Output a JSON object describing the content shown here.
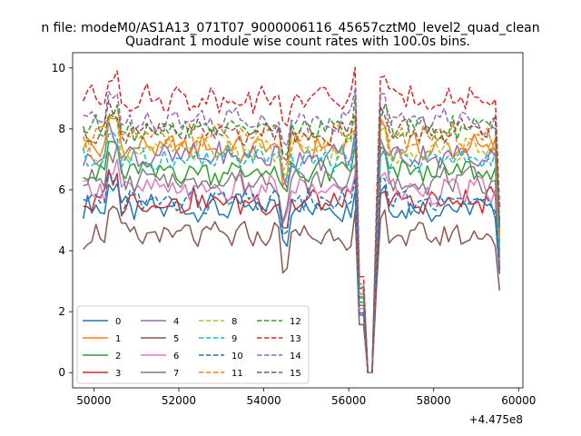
{
  "chart_data": {
    "type": "line",
    "suptitle": "n file: modeM0/AS1A13_071T07_9000006116_45657cztM0_level2_quad_clean",
    "title": "Quadrant 1 module wise count rates with 100.0s bins.",
    "xlabel": "",
    "ylabel": "",
    "x_offset_label": "+4.475e8",
    "xlim": [
      49500,
      60100
    ],
    "ylim": [
      -0.5,
      10.5
    ],
    "xticks": [
      50000,
      52000,
      54000,
      56000,
      58000,
      60000
    ],
    "xtick_labels": [
      "50000",
      "52000",
      "54000",
      "56000",
      "58000",
      "60000"
    ],
    "yticks": [
      0,
      2,
      4,
      6,
      8,
      10
    ],
    "ytick_labels": [
      "0",
      "2",
      "4",
      "6",
      "8",
      "10"
    ],
    "x_range_data": [
      49750,
      59600
    ],
    "bin_seconds": 100.0,
    "gap": {
      "drop_start": 56250,
      "zero_start": 56450,
      "zero_end": 56600,
      "recover": 56700
    },
    "legend": {
      "location": "lower left",
      "columns": 4
    },
    "series": [
      {
        "name": "0",
        "color": "#1f77b4",
        "dash": "solid",
        "level": 5.4
      },
      {
        "name": "1",
        "color": "#ff7f0e",
        "dash": "solid",
        "level": 7.4
      },
      {
        "name": "2",
        "color": "#2ca02c",
        "dash": "solid",
        "level": 6.6
      },
      {
        "name": "3",
        "color": "#d62728",
        "dash": "solid",
        "level": 5.6
      },
      {
        "name": "4",
        "color": "#9467bd",
        "dash": "solid",
        "level": 7.1
      },
      {
        "name": "5",
        "color": "#8c564b",
        "dash": "solid",
        "level": 4.5
      },
      {
        "name": "6",
        "color": "#e377c2",
        "dash": "solid",
        "level": 6.0
      },
      {
        "name": "7",
        "color": "#7f7f7f",
        "dash": "solid",
        "level": 6.3
      },
      {
        "name": "8",
        "color": "#bcbd22",
        "dash": "dashed",
        "level": 7.3
      },
      {
        "name": "9",
        "color": "#17becf",
        "dash": "dashed",
        "level": 7.0
      },
      {
        "name": "10",
        "color": "#1f77b4",
        "dash": "dashed",
        "level": 5.6
      },
      {
        "name": "11",
        "color": "#ff7f0e",
        "dash": "dashed",
        "level": 7.7
      },
      {
        "name": "12",
        "color": "#2ca02c",
        "dash": "dashed",
        "level": 8.0
      },
      {
        "name": "13",
        "color": "#d62728",
        "dash": "dashed",
        "level": 9.0
      },
      {
        "name": "14",
        "color": "#9467bd",
        "dash": "dashed",
        "level": 8.3
      },
      {
        "name": "15",
        "color": "#8c564b",
        "dash": "dashed",
        "level": 7.9
      }
    ]
  }
}
